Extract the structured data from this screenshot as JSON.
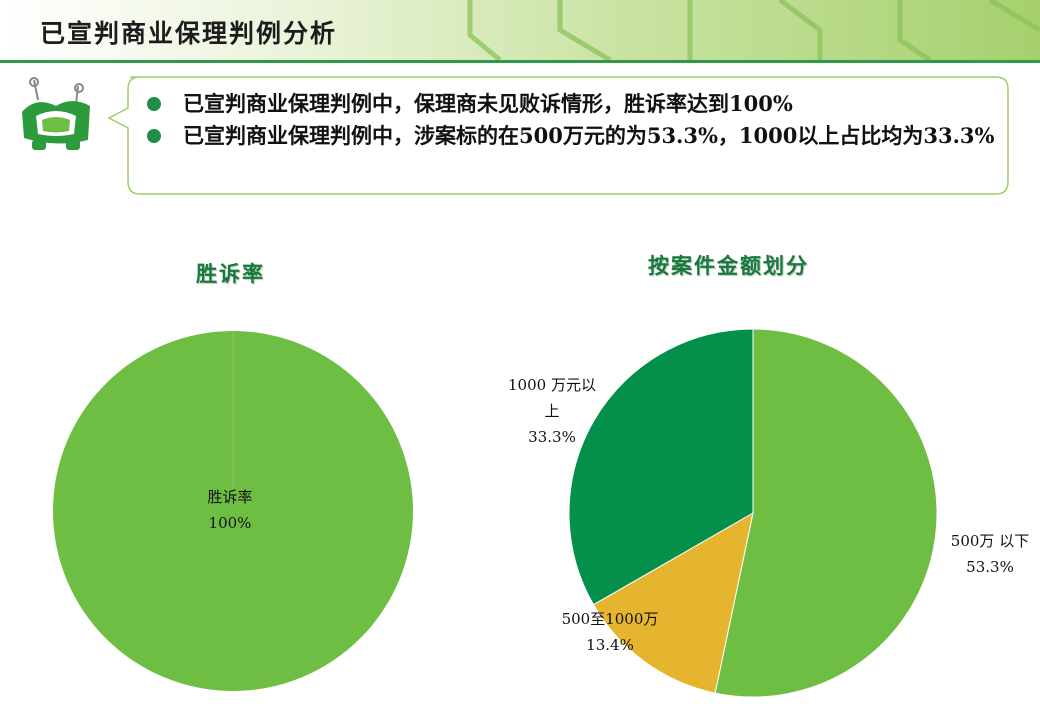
{
  "header": {
    "title": "已宣判商业保理判例分析"
  },
  "callout": {
    "bullets": [
      "已宣判商业保理判例中，保理商未见败诉情形，胜诉率达到100%",
      "已宣判商业保理判例中，涉案标的在500万元的为53.3%，1000以上占比均为33.3%"
    ]
  },
  "colors": {
    "header_line": "#2f9a48",
    "bullet": "#1f8f45",
    "title": "#157a3a"
  },
  "chart_data": [
    {
      "type": "pie",
      "title": "胜诉率",
      "slices": [
        {
          "label": "胜诉率",
          "value": 100,
          "value_label": "100%",
          "color": "#6fbe44"
        }
      ]
    },
    {
      "type": "pie",
      "title": "按案件金额划分",
      "slices": [
        {
          "label": "500万 以下",
          "value": 53.3,
          "value_label": "53.3%",
          "color": "#6fbe44"
        },
        {
          "label": "500至1000万",
          "value": 13.4,
          "value_label": "13.4%",
          "color": "#e6b52f"
        },
        {
          "label": "1000 万元以上",
          "value": 33.3,
          "value_label": "33.3%",
          "color": "#04904a"
        }
      ]
    }
  ]
}
